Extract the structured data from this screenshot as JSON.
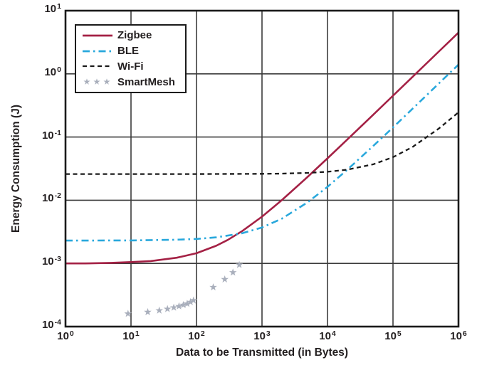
{
  "chart_data": {
    "type": "line",
    "title": "",
    "xlabel": "Data to be Transmitted (in Bytes)",
    "ylabel": "Energy Consumption (J)",
    "x_scale": "log",
    "y_scale": "log",
    "xlim": [
      1,
      1000000
    ],
    "ylim": [
      0.0001,
      10
    ],
    "grid": true,
    "legend_position": "upper-left",
    "x_ticks": [
      "10^0",
      "10^1",
      "10^2",
      "10^3",
      "10^4",
      "10^5",
      "10^6"
    ],
    "y_ticks": [
      "10^1",
      "10^0",
      "10^-1",
      "10^-2",
      "10^-3",
      "10^-4"
    ],
    "x_tick_exponents": [
      0,
      1,
      2,
      3,
      4,
      5,
      6
    ],
    "y_tick_exponents": [
      1,
      0,
      -1,
      -2,
      -3,
      -4
    ],
    "series": [
      {
        "name": "Zigbee",
        "type": "line",
        "style": "solid",
        "color": "#A42145",
        "points": [
          [
            1,
            0.001
          ],
          [
            2,
            0.001
          ],
          [
            5,
            0.00102
          ],
          [
            10,
            0.00105
          ],
          [
            20,
            0.00109
          ],
          [
            50,
            0.00123
          ],
          [
            100,
            0.00145
          ],
          [
            200,
            0.0019
          ],
          [
            300,
            0.00235
          ],
          [
            500,
            0.00325
          ],
          [
            1000,
            0.0055
          ],
          [
            2000,
            0.01
          ],
          [
            5000,
            0.0235
          ],
          [
            10000,
            0.046
          ],
          [
            20000,
            0.091
          ],
          [
            50000,
            0.226
          ],
          [
            100000,
            0.451
          ],
          [
            200000,
            0.901
          ],
          [
            500000,
            2.25
          ],
          [
            1000000,
            4.5
          ]
        ]
      },
      {
        "name": "BLE",
        "type": "line",
        "style": "dash-dot",
        "color": "#29A8DC",
        "points": [
          [
            1,
            0.0023
          ],
          [
            10,
            0.00231
          ],
          [
            50,
            0.00237
          ],
          [
            100,
            0.00244
          ],
          [
            200,
            0.00258
          ],
          [
            500,
            0.003
          ],
          [
            1000,
            0.0037
          ],
          [
            2000,
            0.0051
          ],
          [
            5000,
            0.0093
          ],
          [
            10000,
            0.0163
          ],
          [
            20000,
            0.0303
          ],
          [
            50000,
            0.0723
          ],
          [
            100000,
            0.142
          ],
          [
            200000,
            0.282
          ],
          [
            500000,
            0.702
          ],
          [
            1000000,
            1.4
          ]
        ]
      },
      {
        "name": "Wi-Fi",
        "type": "line",
        "style": "dashed",
        "color": "#1A1A1A",
        "points": [
          [
            1,
            0.026
          ],
          [
            10,
            0.026
          ],
          [
            100,
            0.026
          ],
          [
            1000,
            0.0262
          ],
          [
            2000,
            0.0264
          ],
          [
            5000,
            0.0271
          ],
          [
            10000,
            0.0282
          ],
          [
            20000,
            0.0304
          ],
          [
            50000,
            0.037
          ],
          [
            100000,
            0.048
          ],
          [
            200000,
            0.07
          ],
          [
            500000,
            0.136
          ],
          [
            1000000,
            0.246
          ]
        ]
      },
      {
        "name": "SmartMesh",
        "type": "scatter",
        "marker": "star",
        "color": "#A9AFBC",
        "points": [
          [
            9,
            0.00016
          ],
          [
            18,
            0.00017
          ],
          [
            27,
            0.00018
          ],
          [
            36,
            0.00019
          ],
          [
            45,
            0.0002
          ],
          [
            54,
            0.00021
          ],
          [
            63,
            0.00022
          ],
          [
            72,
            0.00023
          ],
          [
            81,
            0.000245
          ],
          [
            90,
            0.00026
          ],
          [
            180,
            0.00042
          ],
          [
            270,
            0.00056
          ],
          [
            360,
            0.00072
          ],
          [
            450,
            0.00095
          ]
        ]
      }
    ],
    "colors": {
      "background": "#FFFFFF",
      "grid": "#3C3C3C",
      "axis": "#1A1A1A",
      "text": "#231F20"
    }
  }
}
